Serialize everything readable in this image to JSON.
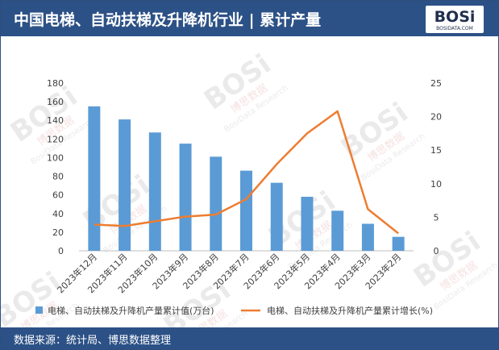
{
  "header": {
    "title": "中国电梯、自动扶梯及升降机行业 | 累计产量",
    "logo_main": "BOSi",
    "logo_sub": "BOSIDATA.COM"
  },
  "watermark": {
    "brand": "BOSi",
    "cn": "博思数据",
    "en": "BosiData Research",
    "url": "BOSIDATA.COM"
  },
  "footer": {
    "source": "数据来源：统计局、博思数据整理"
  },
  "colors": {
    "header_bg": "#2c5186",
    "bar": "#5b9bd5",
    "line": "#ed7d31"
  },
  "chart_data": {
    "type": "bar+line",
    "categories": [
      "2023年12月",
      "2023年11月",
      "2023年10月",
      "2023年9月",
      "2023年8月",
      "2023年7月",
      "2023年6月",
      "2023年5月",
      "2023年4月",
      "2023年3月",
      "2023年2月"
    ],
    "series": [
      {
        "name": "电梯、自动扶梯及升降机产量累计值(万台)",
        "type": "bar",
        "axis": "left",
        "values": [
          155,
          141,
          127,
          115,
          101,
          86,
          73,
          58,
          43,
          29,
          15
        ]
      },
      {
        "name": "电梯、自动扶梯及升降机产量累计增长(%)",
        "type": "line",
        "axis": "right",
        "values": [
          3.9,
          3.7,
          4.4,
          5.1,
          5.4,
          7.7,
          12.9,
          17.5,
          20.8,
          6.2,
          2.6
        ]
      }
    ],
    "y_left": {
      "min": 0,
      "max": 180,
      "step": 20,
      "ticks": [
        "0",
        "20",
        "40",
        "60",
        "80",
        "100",
        "120",
        "140",
        "160",
        "180"
      ]
    },
    "y_right": {
      "min": 0,
      "max": 25,
      "step": 5,
      "ticks": [
        "0",
        "5",
        "10",
        "15",
        "20",
        "25"
      ]
    },
    "grid": false,
    "legend_position": "bottom"
  }
}
